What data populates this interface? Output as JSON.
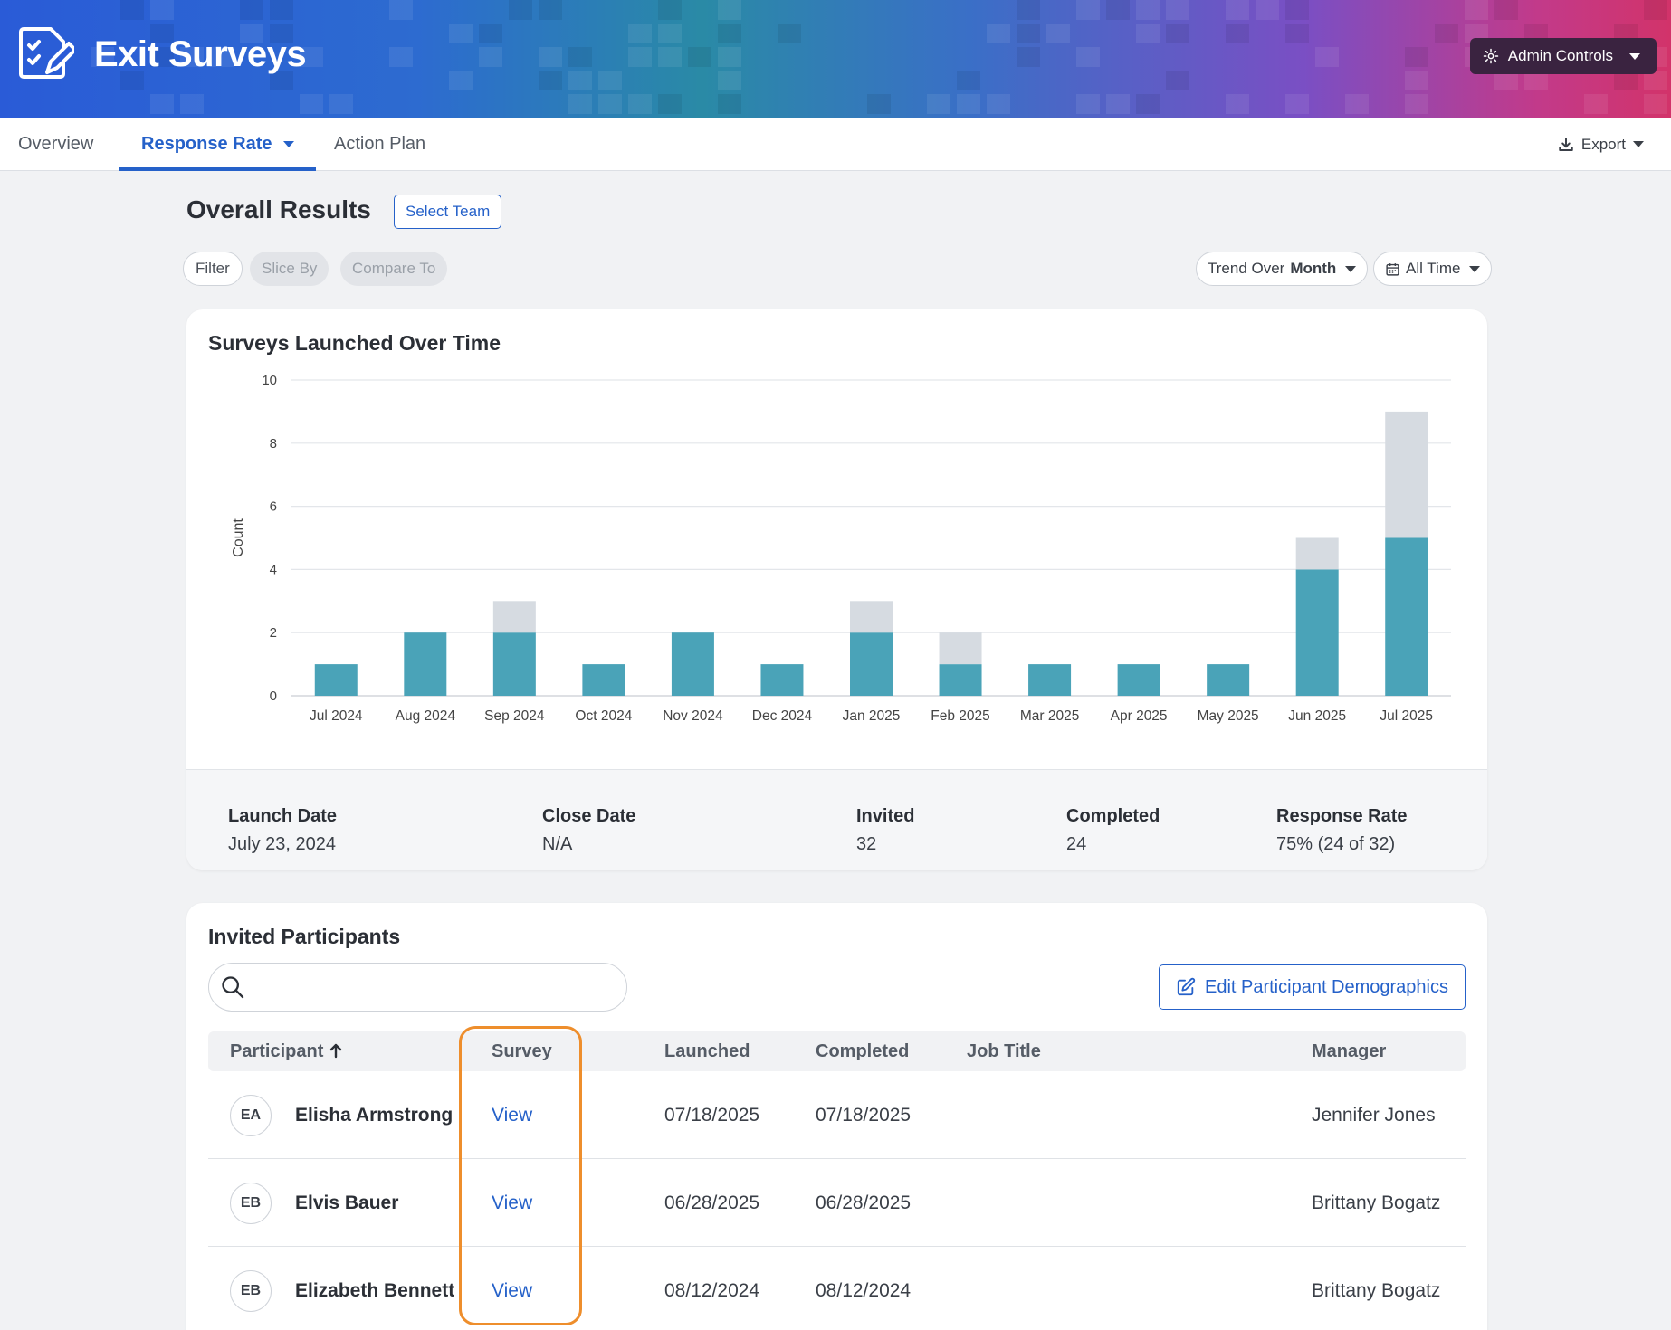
{
  "app": {
    "title": "Exit Surveys",
    "admin_label": "Admin Controls"
  },
  "tabs": [
    {
      "label": "Overview",
      "active": false
    },
    {
      "label": "Response Rate",
      "active": true
    },
    {
      "label": "Action Plan",
      "active": false
    }
  ],
  "export_label": "Export",
  "toolbar": {
    "title": "Overall Results",
    "select_team": "Select Team",
    "filter": "Filter",
    "slice_by": "Slice By",
    "compare_to": "Compare To",
    "trend_prefix": "Trend Over",
    "trend_value": "Month",
    "time_range": "All Time"
  },
  "chart_card": {
    "title": "Surveys Launched Over Time"
  },
  "chart_data": {
    "type": "bar",
    "stacked": true,
    "title": "Surveys Launched Over Time",
    "ylabel": "Count",
    "xlabel": "",
    "ylim": [
      0,
      10
    ],
    "yticks": [
      0,
      2,
      4,
      6,
      8,
      10
    ],
    "grid": true,
    "categories": [
      "Jul 2024",
      "Aug 2024",
      "Sep 2024",
      "Oct 2024",
      "Nov 2024",
      "Dec 2024",
      "Jan 2025",
      "Feb 2025",
      "Mar 2025",
      "Apr 2025",
      "May 2025",
      "Jun 2025",
      "Jul 2025"
    ],
    "series": [
      {
        "values": [
          1,
          2,
          2,
          1,
          2,
          1,
          2,
          1,
          1,
          1,
          1,
          4,
          5
        ],
        "color": "#4aa3b8"
      },
      {
        "values": [
          0,
          0,
          1,
          0,
          0,
          0,
          1,
          1,
          0,
          0,
          0,
          1,
          4
        ],
        "color": "#d6dbe1"
      }
    ]
  },
  "summary": {
    "launch_date_label": "Launch Date",
    "launch_date": "July 23, 2024",
    "close_date_label": "Close Date",
    "close_date": "N/A",
    "invited_label": "Invited",
    "invited": "32",
    "completed_label": "Completed",
    "completed": "24",
    "response_rate_label": "Response Rate",
    "response_rate": "75% (24 of 32)"
  },
  "participants": {
    "title": "Invited Participants",
    "search_placeholder": "",
    "edit_label": "Edit Participant Demographics",
    "columns": {
      "participant": "Participant",
      "survey": "Survey",
      "launched": "Launched",
      "completed": "Completed",
      "job_title": "Job Title",
      "manager": "Manager"
    },
    "rows": [
      {
        "initials": "EA",
        "name": "Elisha Armstrong",
        "survey": "View",
        "launched": "07/18/2025",
        "completed": "07/18/2025",
        "job_title": "",
        "manager": "Jennifer Jones"
      },
      {
        "initials": "EB",
        "name": "Elvis Bauer",
        "survey": "View",
        "launched": "06/28/2025",
        "completed": "06/28/2025",
        "job_title": "",
        "manager": "Brittany Bogatz"
      },
      {
        "initials": "EB",
        "name": "Elizabeth Bennett",
        "survey": "View",
        "launched": "08/12/2024",
        "completed": "08/12/2024",
        "job_title": "",
        "manager": "Brittany Bogatz"
      }
    ]
  }
}
